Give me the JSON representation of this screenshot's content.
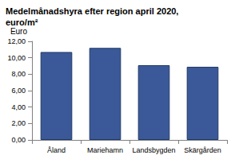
{
  "chart_data": {
    "type": "bar",
    "title": "Medelmånadshyra efter region april 2020, euro/m²",
    "y_label": "Euro",
    "categories": [
      "Åland",
      "Mariehamn",
      "Landsbygden",
      "Skärgården"
    ],
    "values": [
      10.7,
      11.2,
      9.1,
      8.9
    ],
    "color": "#3b5998",
    "ylim": [
      0,
      12
    ],
    "yticks": [
      {
        "value": 0,
        "label": "0,00"
      },
      {
        "value": 2,
        "label": "2,00"
      },
      {
        "value": 4,
        "label": "4,00"
      },
      {
        "value": 6,
        "label": "6,00"
      },
      {
        "value": 8,
        "label": "8,00"
      },
      {
        "value": 10,
        "label": "10,00"
      },
      {
        "value": 12,
        "label": "12,00"
      }
    ],
    "grid": false
  }
}
